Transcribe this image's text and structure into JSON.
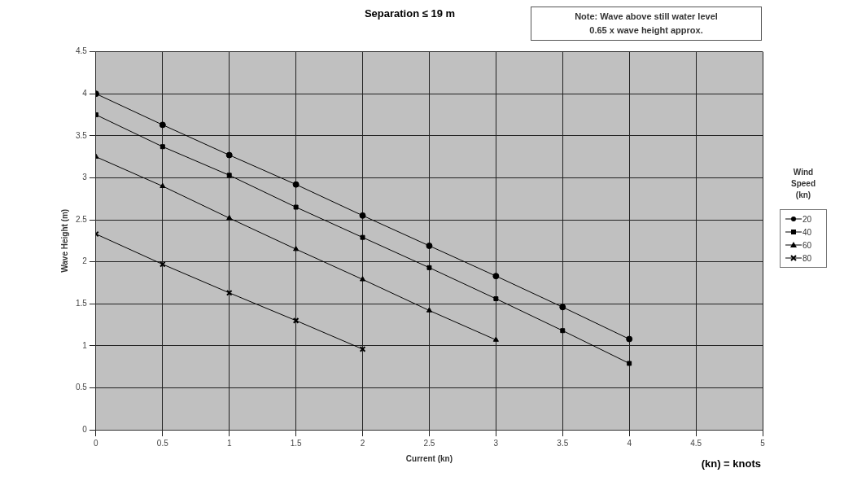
{
  "chart_data": {
    "type": "line",
    "title": "Separation ≤ 19 m",
    "xlabel": "Current (kn)",
    "ylabel": "Wave Height (m)",
    "legend_title": "Wind Speed (kn)",
    "annotations": [
      "Note: Wave above still water level\n0.65 x wave height approx.",
      "(kn) = knots"
    ],
    "xlim": [
      0,
      5
    ],
    "xticks": [
      0,
      0.5,
      1,
      1.5,
      2,
      2.5,
      3,
      3.5,
      4,
      4.5,
      5
    ],
    "ylim": [
      0,
      4.5
    ],
    "yticks": [
      0,
      0.5,
      1,
      1.5,
      2,
      2.5,
      3,
      3.5,
      4,
      4.5
    ],
    "grid": true,
    "legend": "right",
    "line_style": "solid",
    "series": [
      {
        "name": "20",
        "color": "#000000",
        "marker": "circle",
        "x": [
          0,
          0.5,
          1,
          1.5,
          2,
          2.5,
          3,
          3.5,
          4
        ],
        "values": [
          4.0,
          3.63,
          3.27,
          2.92,
          2.55,
          2.19,
          1.83,
          1.46,
          1.08
        ]
      },
      {
        "name": "40",
        "color": "#000000",
        "marker": "square",
        "x": [
          0,
          0.5,
          1,
          1.5,
          2,
          2.5,
          3,
          3.5,
          4
        ],
        "values": [
          3.75,
          3.37,
          3.03,
          2.65,
          2.29,
          1.93,
          1.56,
          1.18,
          0.79
        ]
      },
      {
        "name": "60",
        "color": "#000000",
        "marker": "triangle",
        "x": [
          0,
          0.5,
          1,
          1.5,
          2,
          2.5,
          3
        ],
        "values": [
          3.25,
          2.9,
          2.52,
          2.15,
          1.79,
          1.42,
          1.07
        ]
      },
      {
        "name": "80",
        "color": "#000000",
        "marker": "cross",
        "x": [
          0,
          0.5,
          1,
          1.5,
          2
        ],
        "values": [
          2.33,
          1.97,
          1.63,
          1.3,
          0.96
        ]
      }
    ]
  }
}
